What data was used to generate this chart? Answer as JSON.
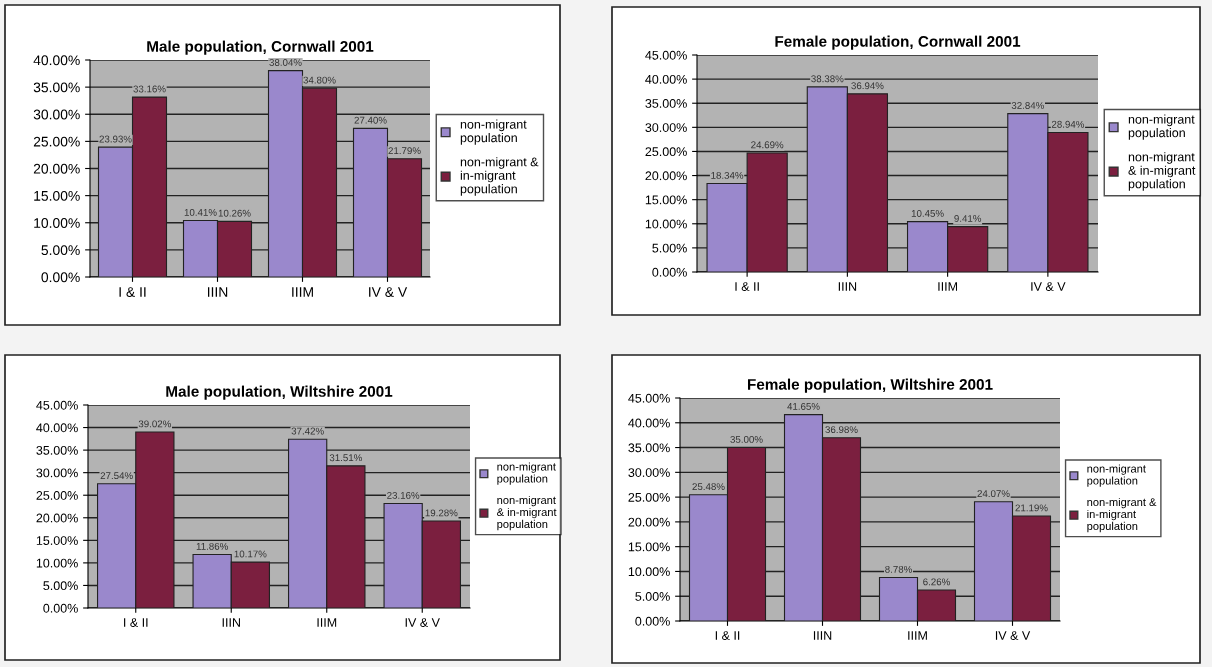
{
  "chart_data": [
    {
      "type": "bar",
      "title": "Male population, Cornwall 2001",
      "categories": [
        "I & II",
        "IIIN",
        "IIIM",
        "IV & V"
      ],
      "series": [
        {
          "name": "non-migrant\npopulation",
          "color": "#9a88cc",
          "values": [
            23.93,
            10.41,
            38.04,
            27.4
          ],
          "value_labels": [
            "23.93%",
            "10.41%",
            "38.04%",
            "27.40%"
          ]
        },
        {
          "name": "non-migrant &\nin-migrant\npopulation",
          "color": "#7b1f3f",
          "values": [
            33.16,
            10.26,
            34.8,
            21.79
          ],
          "value_labels": [
            "33.16%",
            "10.26%",
            "34.80%",
            "21.79%"
          ]
        }
      ],
      "ylim": [
        0,
        40
      ],
      "yticks": [
        {
          "value": 0,
          "label": "0.00%"
        },
        {
          "value": 5,
          "label": "5.00%"
        },
        {
          "value": 10,
          "label": "10.00%"
        },
        {
          "value": 15,
          "label": "15.00%"
        },
        {
          "value": 20,
          "label": "20.00%"
        },
        {
          "value": 25,
          "label": "25.00%"
        },
        {
          "value": 30,
          "label": "30.00%"
        },
        {
          "value": 35,
          "label": "35.00%"
        },
        {
          "value": 40,
          "label": "40.00%"
        }
      ],
      "grid": "y",
      "legend": "right"
    },
    {
      "type": "bar",
      "title": "Female population, Cornwall 2001",
      "categories": [
        "I & II",
        "IIIN",
        "IIIM",
        "IV & V"
      ],
      "series": [
        {
          "name": "non-migrant\npopulation",
          "color": "#9a88cc",
          "values": [
            18.34,
            38.38,
            10.45,
            32.84
          ],
          "value_labels": [
            "18.34%",
            "38.38%",
            "10.45%",
            "32.84%"
          ]
        },
        {
          "name": "non-migrant\n& in-migrant\npopulation",
          "color": "#7b1f3f",
          "values": [
            24.69,
            36.94,
            9.41,
            28.94
          ],
          "value_labels": [
            "24.69%",
            "36.94%",
            "9.41%",
            "28.94%"
          ]
        }
      ],
      "ylim": [
        0,
        45
      ],
      "yticks": [
        {
          "value": 0,
          "label": "0.00%"
        },
        {
          "value": 5,
          "label": "5.00%"
        },
        {
          "value": 10,
          "label": "10.00%"
        },
        {
          "value": 15,
          "label": "15.00%"
        },
        {
          "value": 20,
          "label": "20.00%"
        },
        {
          "value": 25,
          "label": "25.00%"
        },
        {
          "value": 30,
          "label": "30.00%"
        },
        {
          "value": 35,
          "label": "35.00%"
        },
        {
          "value": 40,
          "label": "40.00%"
        },
        {
          "value": 45,
          "label": "45.00%"
        }
      ],
      "grid": "y",
      "legend": "right"
    },
    {
      "type": "bar",
      "title": "Male population, Wiltshire 2001",
      "categories": [
        "I & II",
        "IIIN",
        "IIIM",
        "IV & V"
      ],
      "series": [
        {
          "name": "non-migrant\npopulation",
          "color": "#9a88cc",
          "values": [
            27.54,
            11.86,
            37.42,
            23.16
          ],
          "value_labels": [
            "27.54%",
            "11.86%",
            "37.42%",
            "23.16%"
          ]
        },
        {
          "name": "non-migrant\n& in-migrant\npopulation",
          "color": "#7b1f3f",
          "values": [
            39.02,
            10.17,
            31.51,
            19.28
          ],
          "value_labels": [
            "39.02%",
            "10.17%",
            "31.51%",
            "19.28%"
          ]
        }
      ],
      "ylim": [
        0,
        45
      ],
      "yticks": [
        {
          "value": 0,
          "label": "0.00%"
        },
        {
          "value": 5,
          "label": "5.00%"
        },
        {
          "value": 10,
          "label": "10.00%"
        },
        {
          "value": 15,
          "label": "15.00%"
        },
        {
          "value": 20,
          "label": "20.00%"
        },
        {
          "value": 25,
          "label": "25.00%"
        },
        {
          "value": 30,
          "label": "30.00%"
        },
        {
          "value": 35,
          "label": "35.00%"
        },
        {
          "value": 40,
          "label": "40.00%"
        },
        {
          "value": 45,
          "label": "45.00%"
        }
      ],
      "grid": "y",
      "legend": "right"
    },
    {
      "type": "bar",
      "title": "Female population, Wiltshire 2001",
      "categories": [
        "I & II",
        "IIIN",
        "IIIM",
        "IV & V"
      ],
      "series": [
        {
          "name": "non-migrant\npopulation",
          "color": "#9a88cc",
          "values": [
            25.48,
            41.65,
            8.78,
            24.07
          ],
          "value_labels": [
            "25.48%",
            "41.65%",
            "8.78%",
            "24.07%"
          ]
        },
        {
          "name": "non-migrant &\nin-migrant\npopulation",
          "color": "#7b1f3f",
          "values": [
            35.0,
            36.98,
            6.26,
            21.19
          ],
          "value_labels": [
            "35.00%",
            "36.98%",
            "6.26%",
            "21.19%"
          ]
        }
      ],
      "ylim": [
        0,
        45
      ],
      "yticks": [
        {
          "value": 0,
          "label": "0.00%"
        },
        {
          "value": 5,
          "label": "5.00%"
        },
        {
          "value": 10,
          "label": "10.00%"
        },
        {
          "value": 15,
          "label": "15.00%"
        },
        {
          "value": 20,
          "label": "20.00%"
        },
        {
          "value": 25,
          "label": "25.00%"
        },
        {
          "value": 30,
          "label": "30.00%"
        },
        {
          "value": 35,
          "label": "35.00%"
        },
        {
          "value": 40,
          "label": "40.00%"
        },
        {
          "value": 45,
          "label": "45.00%"
        }
      ],
      "grid": "y",
      "legend": "right"
    }
  ]
}
